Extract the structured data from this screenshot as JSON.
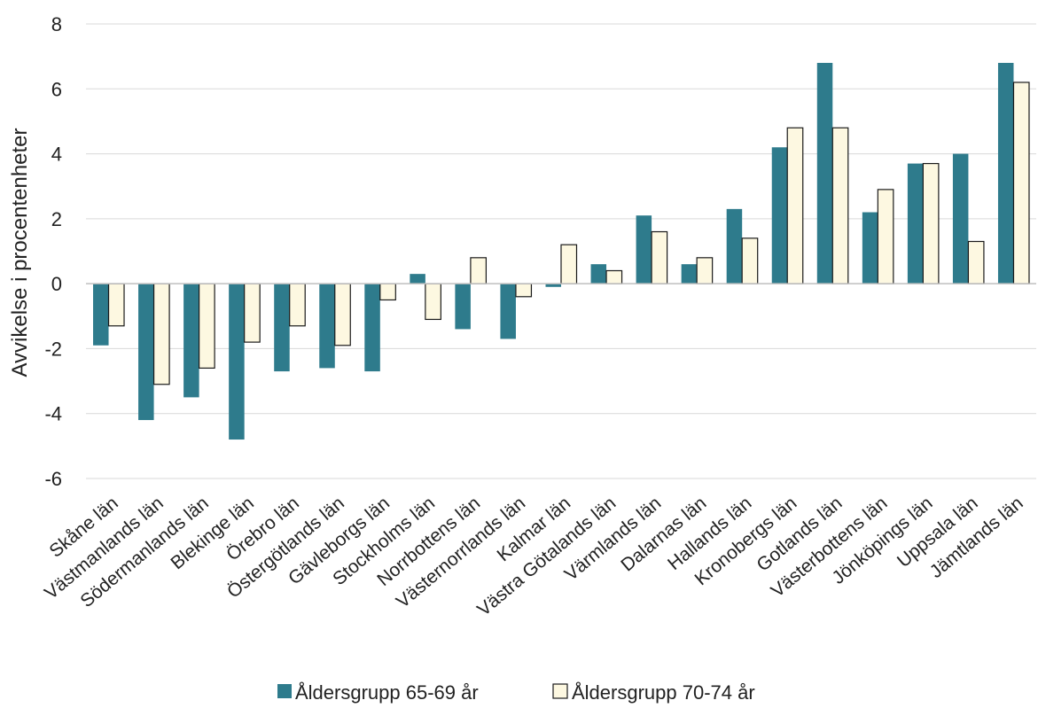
{
  "chart_data": {
    "type": "bar",
    "title": "",
    "xlabel": "",
    "ylabel": "Avvikelse i procentenheter",
    "ylim": [
      -6,
      8
    ],
    "yticks": [
      -6,
      -4,
      -2,
      0,
      2,
      4,
      6,
      8
    ],
    "grid": "horizontal",
    "legend_position": "bottom",
    "categories": [
      "Skåne län",
      "Västmanlands län",
      "Södermanlands län",
      "Blekinge län",
      "Örebro län",
      "Östergötlands län",
      "Gävleborgs län",
      "Stockholms län",
      "Norrbottens län",
      "Västernorrlands län",
      "Kalmar län",
      "Västra Götalands län",
      "Värmlands län",
      "Dalarnas län",
      "Hallands län",
      "Kronobergs län",
      "Gotlands län",
      "Västerbottens län",
      "Jönköpings län",
      "Uppsala län",
      "Jämtlands län"
    ],
    "series": [
      {
        "name": "Åldersgrupp 65-69 år",
        "color": "#2e7b8c",
        "values": [
          -1.9,
          -4.2,
          -3.5,
          -4.8,
          -2.7,
          -2.6,
          -2.7,
          0.3,
          -1.4,
          -1.7,
          -0.1,
          0.6,
          2.1,
          0.6,
          2.3,
          4.2,
          6.8,
          2.2,
          3.7,
          4.0,
          6.8
        ]
      },
      {
        "name": "Åldersgrupp 70-74 år",
        "color": "#fdf8e1",
        "values": [
          -1.3,
          -3.1,
          -2.6,
          -1.8,
          -1.3,
          -1.9,
          -0.5,
          -1.1,
          0.8,
          -0.4,
          1.2,
          0.4,
          1.6,
          0.8,
          1.4,
          4.8,
          4.8,
          2.9,
          3.7,
          1.3,
          6.2
        ]
      }
    ]
  }
}
